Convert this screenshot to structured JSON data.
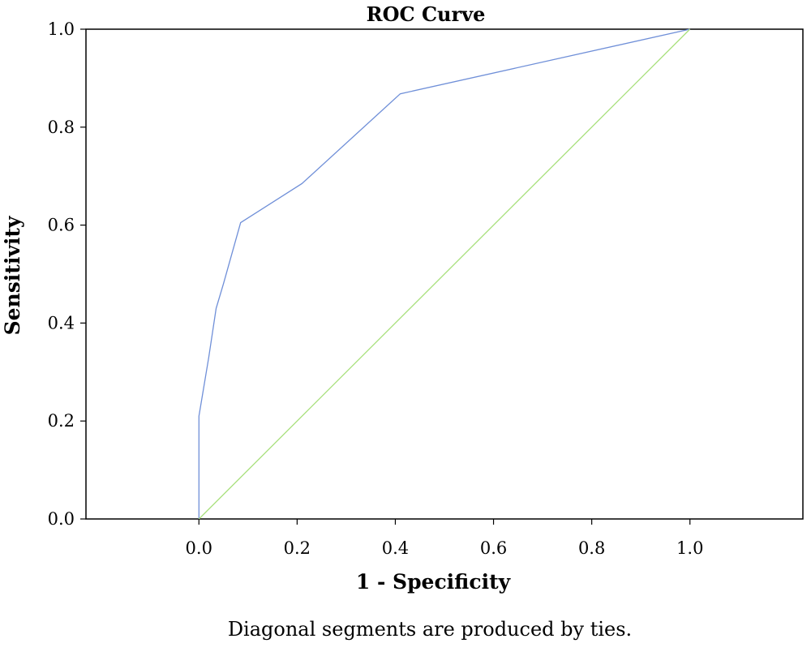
{
  "chart_data": {
    "type": "line",
    "title": "ROC Curve",
    "xlabel": "1 - Specificity",
    "ylabel": "Sensitivity",
    "xlim": [
      -0.23,
      1.23
    ],
    "ylim": [
      0.0,
      1.0
    ],
    "x_ticks": [
      "0.0",
      "0.2",
      "0.4",
      "0.6",
      "0.8",
      "1.0"
    ],
    "y_ticks": [
      "0.0",
      "0.2",
      "0.4",
      "0.6",
      "0.8",
      "1.0"
    ],
    "grid": false,
    "footnote": "Diagonal segments are produced by ties.",
    "series": [
      {
        "color": "#6f8fd8",
        "x": [
          0.0,
          0.0,
          0.02,
          0.035,
          0.05,
          0.085,
          0.21,
          0.41,
          1.0
        ],
        "y": [
          0.0,
          0.21,
          0.33,
          0.43,
          0.48,
          0.605,
          0.685,
          0.868,
          1.0
        ]
      },
      {
        "color": "#a8e07c",
        "x": [
          0.0,
          1.0
        ],
        "y": [
          0.0,
          1.0
        ]
      }
    ]
  }
}
